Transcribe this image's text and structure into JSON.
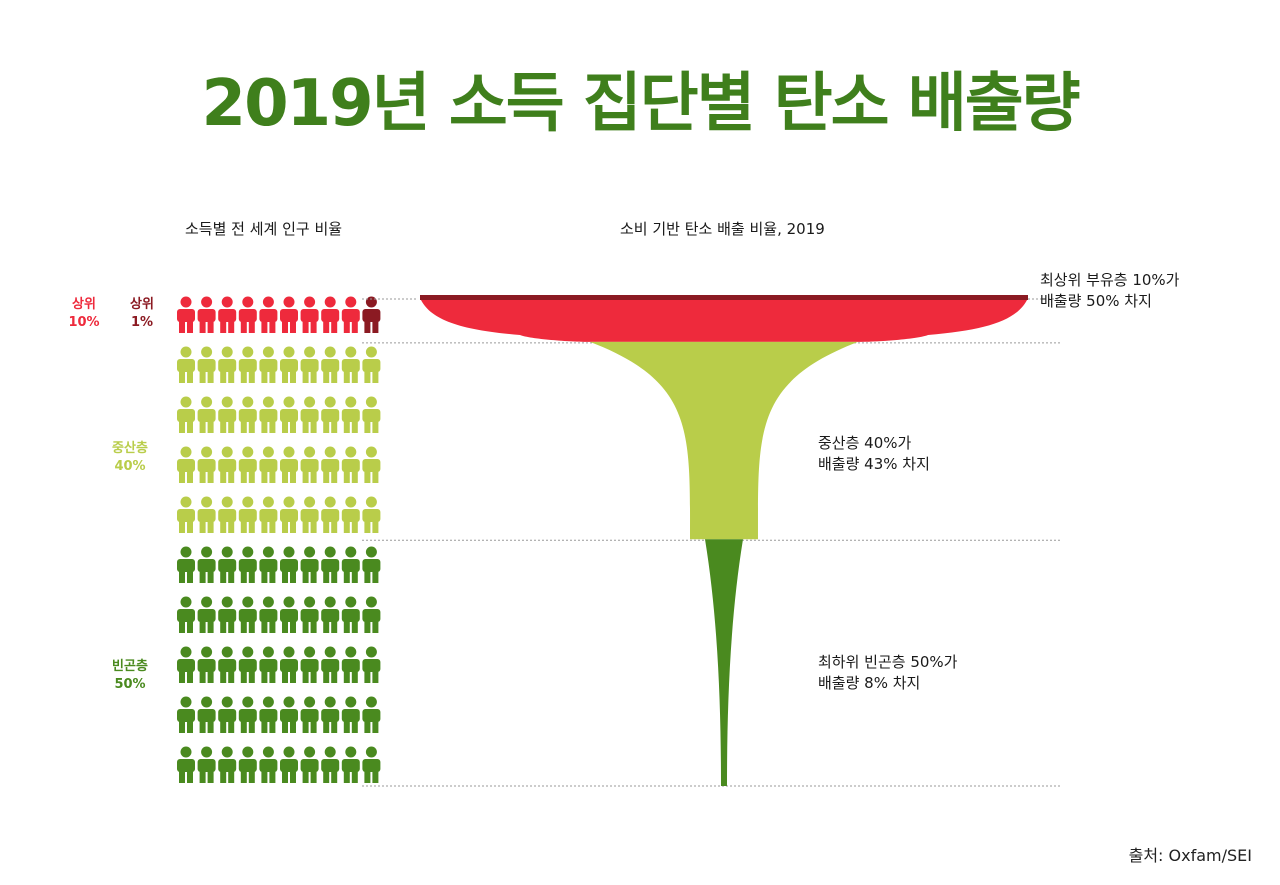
{
  "title": "2019년 소득 집단별 탄소 배출량",
  "left_subtitle": "소득별 전 세계 인구 비율",
  "right_subtitle": "소비 기반 탄소 배출 비율, 2019",
  "groups": {
    "top10": {
      "label": "상위",
      "pct": "10%"
    },
    "top1": {
      "label": "상위",
      "pct": "1%"
    },
    "middle": {
      "label": "중산층",
      "pct": "40%"
    },
    "bottom": {
      "label": "빈곤층",
      "pct": "50%"
    }
  },
  "annotations": {
    "top": {
      "line1": "최상위 부유층 10%가",
      "line2": "배출량 50% 차지"
    },
    "middle": {
      "line1": "중산층 40%가",
      "line2": "배출량 43% 차지"
    },
    "bottom": {
      "line1": "최하위 빈곤층 50%가",
      "line2": "배출량 8% 차지"
    }
  },
  "source": "출처: Oxfam/SEI",
  "colors": {
    "title": "#3f7f1c",
    "top1": "#8b1a22",
    "top10": "#ee2a3c",
    "middle": "#b9cd4a",
    "bottom": "#4a8a1f"
  },
  "chart_data": [
    {
      "type": "pictogram",
      "icons_total": 100,
      "rows": 10,
      "columns": 10,
      "series": [
        {
          "name": "상위 1%",
          "count": 1
        },
        {
          "name": "상위 10%",
          "count": 9
        },
        {
          "name": "중산층 40%",
          "count": 40
        },
        {
          "name": "빈곤층 50%",
          "count": 50
        }
      ]
    },
    {
      "type": "area",
      "categories": [
        "상위 10%",
        "중산층 40%",
        "빈곤층 50%"
      ],
      "population_share": [
        10,
        40,
        50
      ],
      "emission_share": [
        50,
        43,
        8
      ]
    }
  ]
}
